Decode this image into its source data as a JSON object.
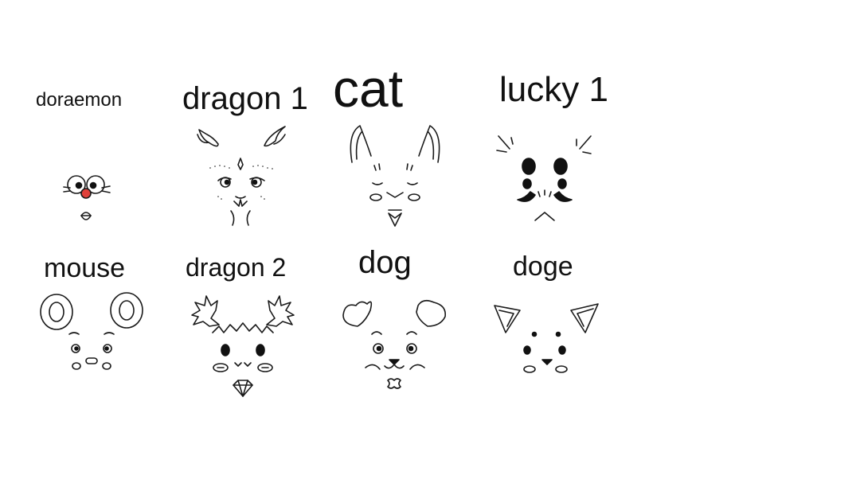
{
  "stickers": [
    {
      "name": "doraemon",
      "label": "doraemon",
      "icon": "doraemon-face-icon"
    },
    {
      "name": "dragon-1",
      "label": "dragon 1",
      "icon": "dragon-face-icon"
    },
    {
      "name": "cat",
      "label": "cat",
      "icon": "cat-face-icon"
    },
    {
      "name": "lucky-1",
      "label": "lucky 1",
      "icon": "lucky-face-icon"
    },
    {
      "name": "mouse",
      "label": "mouse",
      "icon": "mouse-face-icon"
    },
    {
      "name": "dragon-2",
      "label": "dragon 2",
      "icon": "dragon-antler-face-icon"
    },
    {
      "name": "dog",
      "label": "dog",
      "icon": "dog-face-icon"
    },
    {
      "name": "doge",
      "label": "doge",
      "icon": "doge-face-icon"
    }
  ],
  "colors": {
    "background": "#ffffff",
    "ink": "#111111",
    "doraemon_nose": "#e0403a"
  }
}
